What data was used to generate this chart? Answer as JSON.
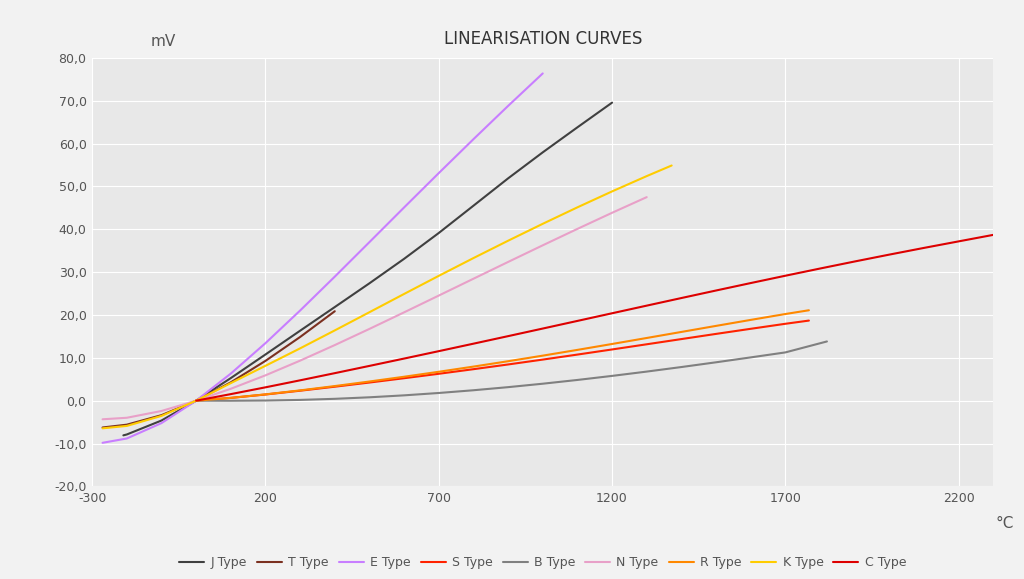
{
  "title": "LINEARISATION CURVES",
  "ylabel": "mV",
  "xlabel": "°C",
  "xlim": [
    -300,
    2300
  ],
  "ylim": [
    -20,
    80
  ],
  "xticks": [
    -300,
    200,
    700,
    1200,
    1700,
    2200
  ],
  "yticks": [
    -20,
    -10,
    0,
    10,
    20,
    30,
    40,
    50,
    60,
    70,
    80
  ],
  "background_color": "#f2f2f2",
  "plot_bg_color": "#e8e8e8",
  "grid_color": "#ffffff",
  "thermocouple_data": {
    "J Type": {
      "color": "#404040",
      "T": [
        -210,
        -200,
        -100,
        0,
        100,
        200,
        300,
        400,
        500,
        600,
        700,
        800,
        900,
        1000,
        1100,
        1200
      ],
      "V": [
        -8.095,
        -7.89,
        -4.633,
        0.0,
        5.269,
        10.779,
        16.327,
        21.848,
        27.393,
        33.102,
        39.132,
        45.494,
        51.877,
        57.953,
        63.792,
        69.553
      ]
    },
    "T Type": {
      "color": "#7b3020",
      "T": [
        -270,
        -200,
        -100,
        0,
        100,
        200,
        300,
        400
      ],
      "V": [
        -6.258,
        -5.603,
        -3.379,
        0.0,
        4.279,
        9.288,
        14.862,
        20.872
      ]
    },
    "E Type": {
      "color": "#c87eff",
      "T": [
        -270,
        -200,
        -100,
        0,
        100,
        200,
        300,
        400,
        500,
        600,
        700,
        800,
        900,
        1000
      ],
      "V": [
        -9.835,
        -8.825,
        -5.237,
        0.0,
        6.319,
        13.421,
        21.036,
        28.946,
        37.005,
        45.093,
        53.112,
        61.017,
        68.787,
        76.373
      ]
    },
    "S Type": {
      "color": "#ff2200",
      "T": [
        0,
        100,
        200,
        300,
        400,
        500,
        600,
        700,
        800,
        900,
        1000,
        1100,
        1200,
        1300,
        1400,
        1500,
        1600,
        1700,
        1768
      ],
      "V": [
        0.0,
        0.646,
        1.441,
        2.323,
        3.259,
        4.233,
        5.239,
        6.275,
        7.345,
        8.449,
        9.587,
        10.757,
        11.951,
        13.159,
        14.373,
        15.582,
        16.771,
        17.942,
        18.693
      ]
    },
    "B Type": {
      "color": "#808080",
      "T": [
        0,
        100,
        200,
        300,
        400,
        500,
        600,
        700,
        800,
        900,
        1000,
        1100,
        1200,
        1300,
        1400,
        1500,
        1600,
        1700,
        1820
      ],
      "V": [
        0.0,
        -0.02,
        0.033,
        0.178,
        0.431,
        0.787,
        1.242,
        1.792,
        2.431,
        3.154,
        3.957,
        4.834,
        5.78,
        6.786,
        7.848,
        8.956,
        10.099,
        11.263,
        13.82
      ]
    },
    "N Type": {
      "color": "#e8a0c8",
      "T": [
        -270,
        -200,
        -100,
        0,
        100,
        200,
        300,
        400,
        500,
        600,
        700,
        800,
        900,
        1000,
        1100,
        1200,
        1300
      ],
      "V": [
        -4.345,
        -3.99,
        -2.407,
        0.0,
        2.774,
        5.913,
        9.341,
        12.974,
        16.748,
        20.613,
        24.527,
        28.455,
        32.371,
        36.256,
        40.087,
        43.846,
        47.502
      ]
    },
    "R Type": {
      "color": "#ff8800",
      "T": [
        0,
        100,
        200,
        300,
        400,
        500,
        600,
        700,
        800,
        900,
        1000,
        1100,
        1200,
        1300,
        1400,
        1500,
        1600,
        1700,
        1768
      ],
      "V": [
        0.0,
        0.647,
        1.469,
        2.401,
        3.408,
        4.471,
        5.583,
        6.743,
        7.95,
        9.205,
        10.506,
        11.85,
        13.228,
        14.629,
        16.04,
        17.451,
        18.849,
        20.222,
        21.101
      ]
    },
    "K Type": {
      "color": "#ffcc00",
      "T": [
        -270,
        -200,
        -100,
        0,
        100,
        200,
        300,
        400,
        500,
        600,
        700,
        800,
        900,
        1000,
        1100,
        1200,
        1300,
        1372
      ],
      "V": [
        -6.458,
        -5.891,
        -3.554,
        0.0,
        4.096,
        8.138,
        12.209,
        16.397,
        20.644,
        24.905,
        29.129,
        33.275,
        37.326,
        41.276,
        45.119,
        48.838,
        52.41,
        54.886
      ]
    },
    "C Type": {
      "color": "#dd0000",
      "T": [
        0,
        100,
        200,
        300,
        400,
        500,
        600,
        700,
        800,
        900,
        1000,
        1100,
        1200,
        1300,
        1400,
        1500,
        1600,
        1700,
        1800,
        1900,
        2000,
        2100,
        2200,
        2320
      ],
      "V": [
        0.0,
        1.529,
        3.113,
        4.749,
        6.42,
        8.114,
        9.826,
        11.554,
        13.299,
        15.058,
        16.831,
        18.612,
        20.397,
        22.179,
        23.952,
        25.71,
        27.447,
        29.158,
        30.838,
        32.483,
        34.089,
        35.654,
        37.178,
        39.0
      ]
    }
  },
  "legend_order": [
    "J Type",
    "T Type",
    "E Type",
    "S Type",
    "B Type",
    "N Type",
    "R Type",
    "K Type",
    "C Type"
  ]
}
